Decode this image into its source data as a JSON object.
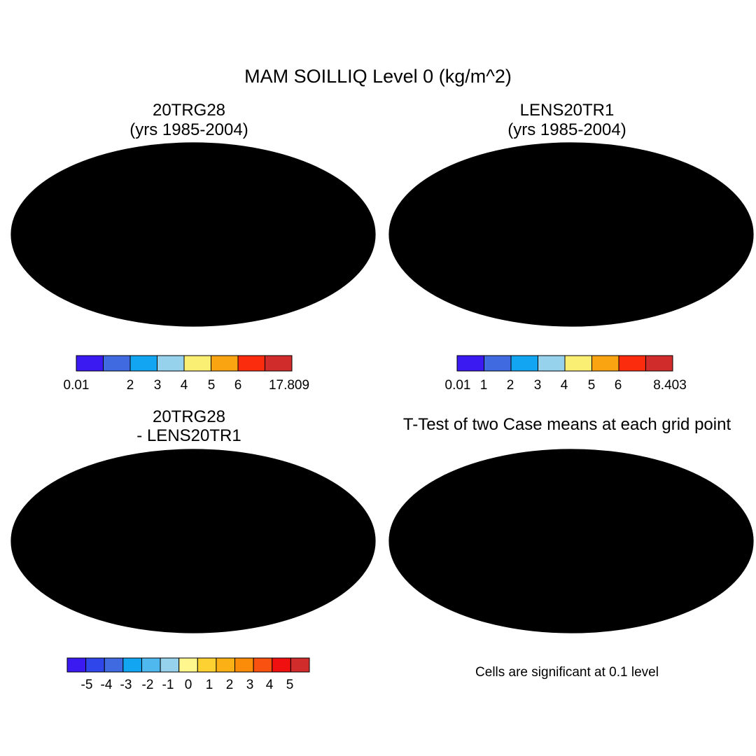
{
  "title": "MAM SOILLIQ Level 0 (kg/m^2)",
  "panels": [
    {
      "id": "p1",
      "title1": "20TRG28",
      "title2": "(yrs 1985-2004)"
    },
    {
      "id": "p2",
      "title1": "LENS20TR1",
      "title2": "(yrs 1985-2004)"
    },
    {
      "id": "p3",
      "title1": "20TRG28",
      "title2": "- LENS20TR1"
    },
    {
      "id": "p4",
      "title1": "T-Test of two Case means at each grid point",
      "title2": ""
    }
  ],
  "colorbars": [
    {
      "id": "cb1",
      "colors": [
        "#3a1af0",
        "#3f6ae0",
        "#12a5f2",
        "#96d2ec",
        "#fbef73",
        "#fba412",
        "#fa2c0d",
        "#d02c2c"
      ],
      "labels": [
        "0.01",
        "",
        "2",
        "3",
        "4",
        "5",
        "6",
        "",
        "17.809"
      ]
    },
    {
      "id": "cb2",
      "colors": [
        "#3a1af0",
        "#3f6ae0",
        "#12a5f2",
        "#96d2ec",
        "#fbef73",
        "#fba412",
        "#fa2c0d",
        "#d02c2c"
      ],
      "labels": [
        "0.01",
        "1",
        "2",
        "3",
        "4",
        "5",
        "6",
        "",
        "8.403"
      ]
    },
    {
      "id": "cb3",
      "colors": [
        "#3a1af0",
        "#2f46ea",
        "#3f6ae0",
        "#12a5f2",
        "#4fb8ef",
        "#96d2ec",
        "#fff68e",
        "#fdd131",
        "#fbb016",
        "#fb8c0a",
        "#f9510f",
        "#f01010",
        "#d02c2c"
      ],
      "labels": [
        "",
        "-5",
        "-4",
        "-3",
        "-2",
        "-1",
        "0",
        "1",
        "2",
        "3",
        "4",
        "5",
        "",
        ""
      ]
    }
  ],
  "note": "Cells are significant at 0.1 level",
  "colors": {
    "ttest_red": "#f50c0c",
    "ocean": "#ffffff",
    "coastline": "#000000"
  }
}
